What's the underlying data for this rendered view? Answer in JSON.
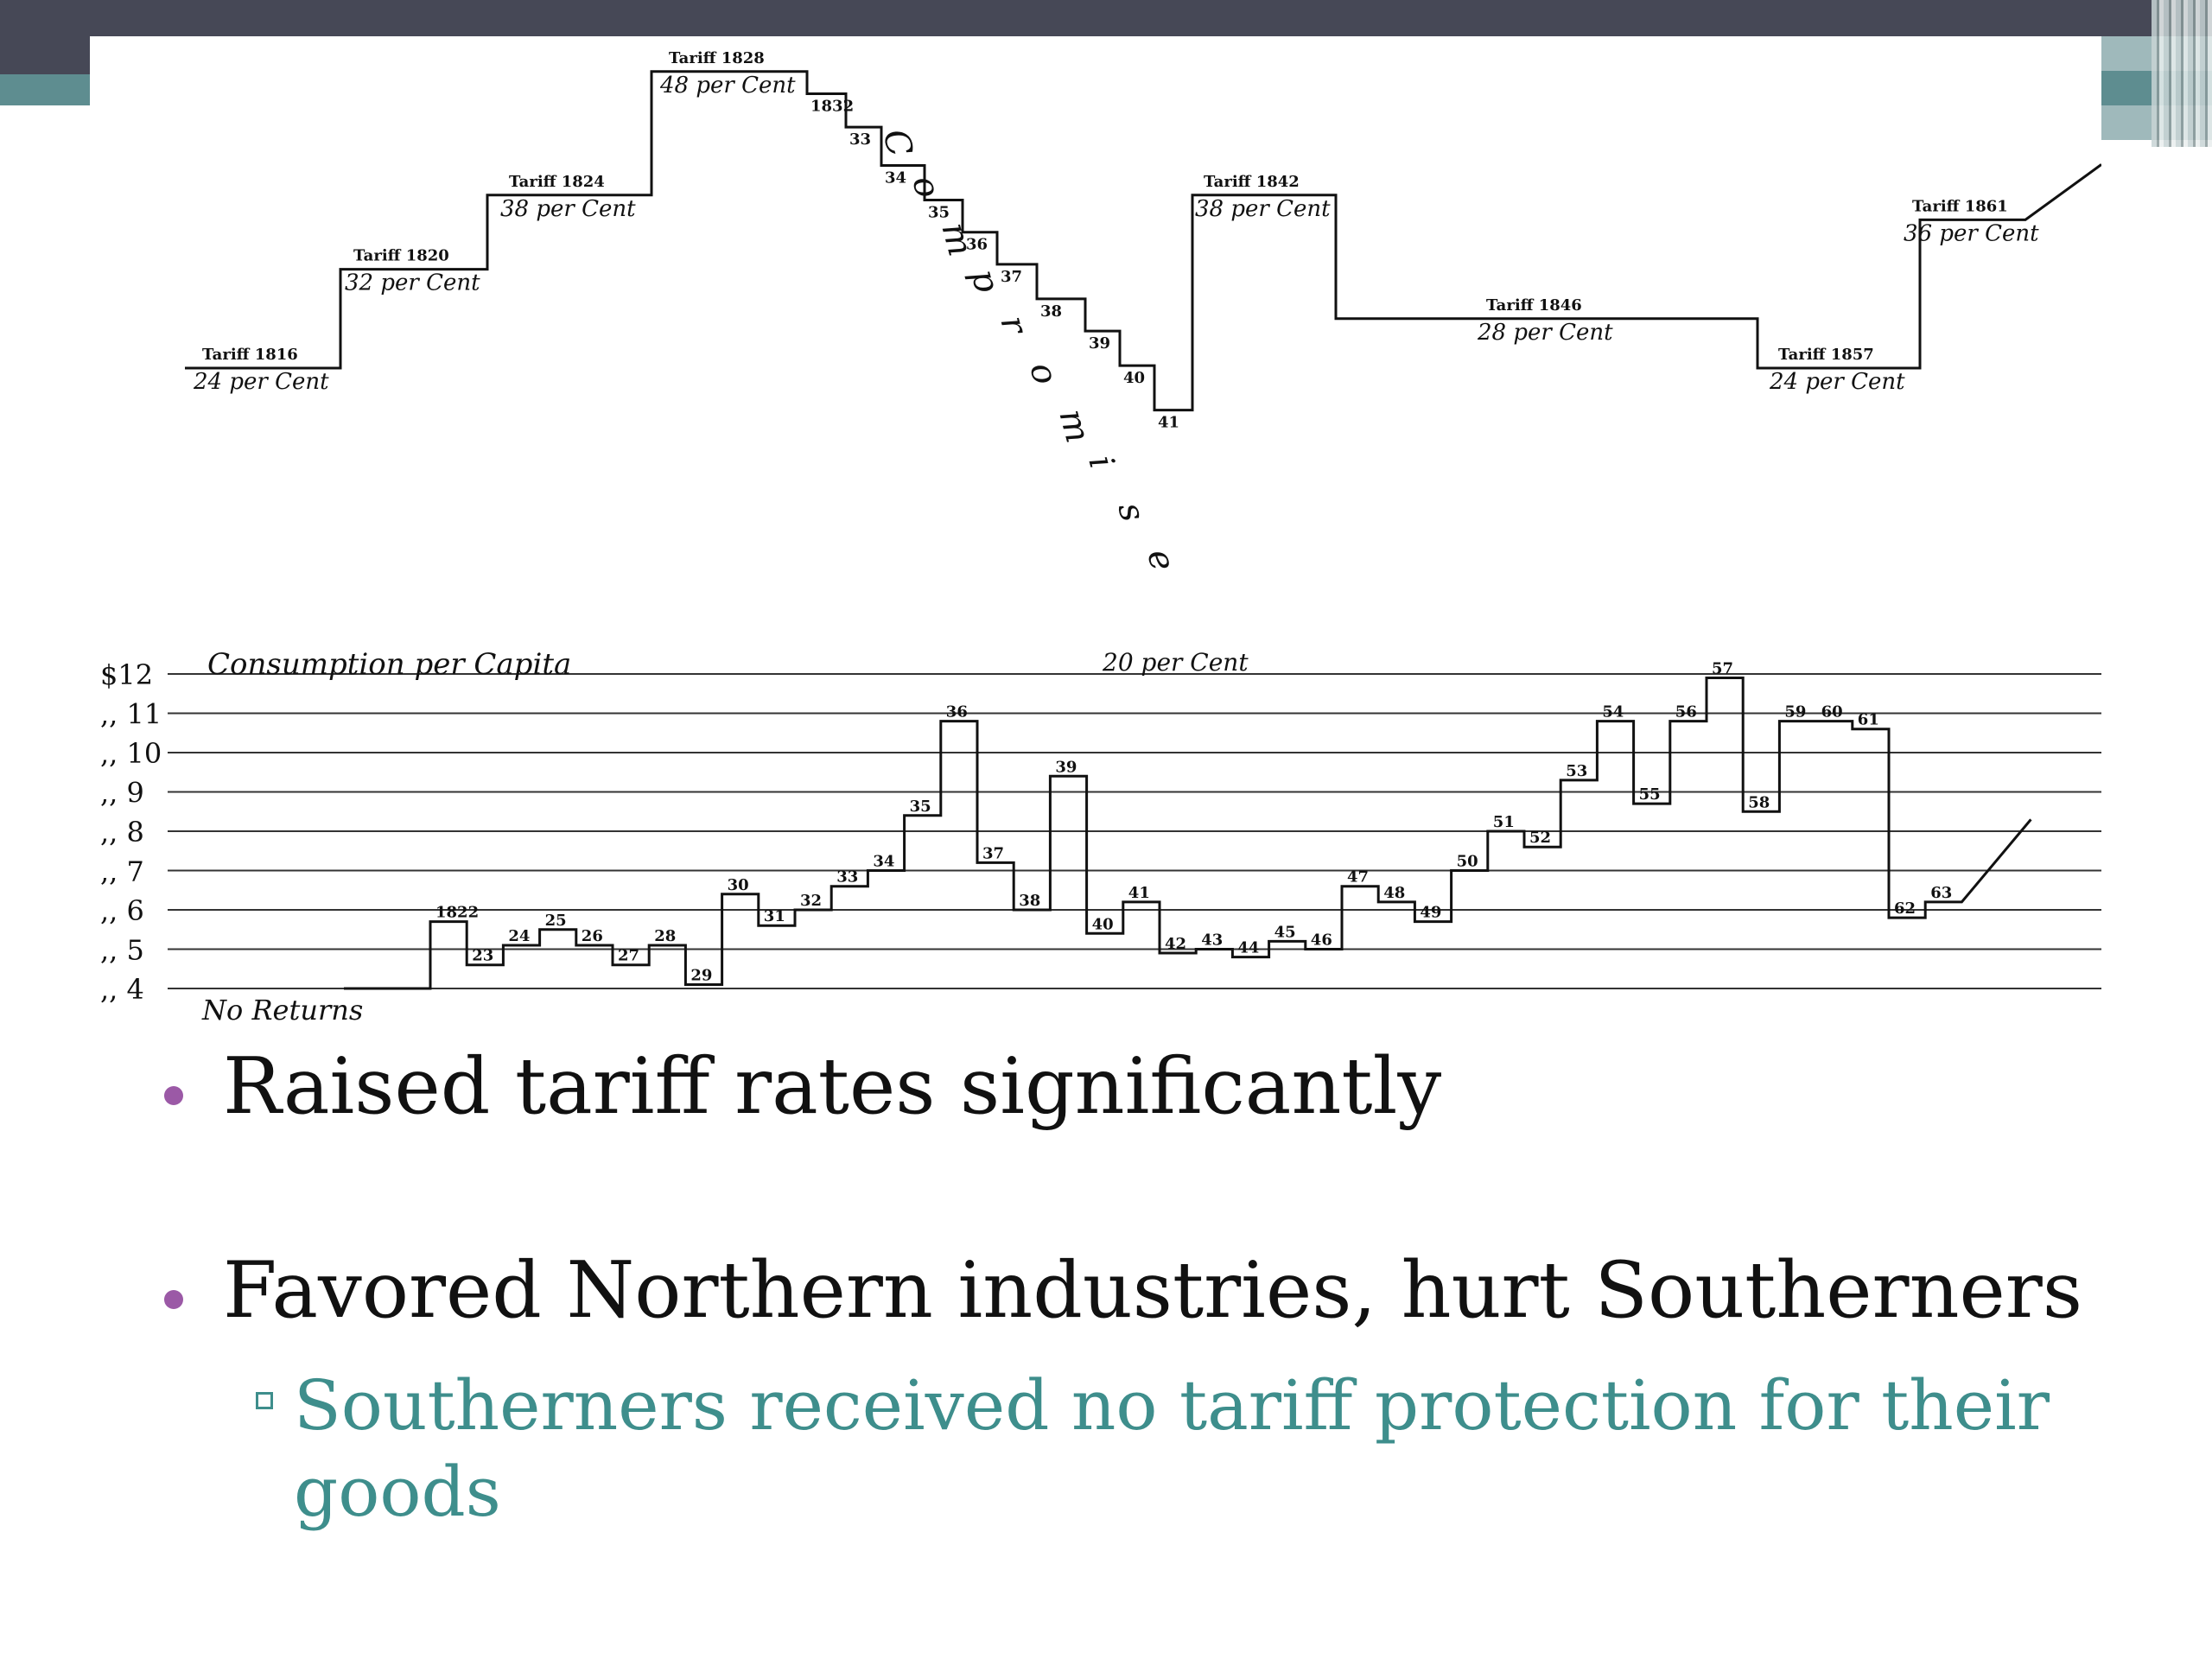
{
  "chart_data": {
    "type": "line",
    "title": "",
    "tariff_rates": {
      "labels": [
        {
          "year": "Tariff 1816",
          "rate": "24 per Cent"
        },
        {
          "year": "Tariff 1820",
          "rate": "32 per Cent"
        },
        {
          "year": "Tariff 1824",
          "rate": "38 per Cent"
        },
        {
          "year": "Tariff 1828",
          "rate": "48 per Cent"
        },
        {
          "year": "Tariff 1842",
          "rate": "38 per Cent"
        },
        {
          "year": "Tariff 1846",
          "rate": "28 per Cent"
        },
        {
          "year": "Tariff 1857",
          "rate": "24 per Cent"
        },
        {
          "year": "Tariff 1861",
          "rate": "36 per Cent"
        }
      ],
      "low_label": "20 per Cent",
      "compromise_text": "Compromise",
      "compromise_years": [
        "1832",
        "33",
        "34",
        "35",
        "36",
        "37",
        "38",
        "39",
        "40",
        "41"
      ]
    },
    "consumption": {
      "ylabel": "Consumption per Capita",
      "y_ticks": [
        "$12",
        "11",
        "10",
        "9",
        "8",
        "7",
        "6",
        "5",
        "4"
      ],
      "no_returns_label": "No Returns",
      "years": [
        "1822",
        "23",
        "24",
        "25",
        "26",
        "27",
        "28",
        "29",
        "30",
        "31",
        "32",
        "33",
        "34",
        "35",
        "36",
        "37",
        "38",
        "39",
        "40",
        "41",
        "42",
        "43",
        "44",
        "45",
        "46",
        "47",
        "48",
        "49",
        "50",
        "51",
        "52",
        "53",
        "54",
        "55",
        "56",
        "57",
        "58",
        "59",
        "60",
        "61",
        "62",
        "63"
      ],
      "values": [
        5.7,
        4.6,
        5.1,
        5.5,
        5.1,
        4.6,
        5.1,
        4.1,
        6.4,
        5.6,
        6.0,
        6.6,
        7.0,
        8.4,
        10.8,
        7.2,
        6.0,
        9.4,
        5.4,
        6.2,
        4.9,
        5.0,
        4.8,
        5.2,
        5.0,
        6.6,
        6.2,
        5.7,
        7.0,
        8.0,
        7.6,
        9.3,
        10.8,
        8.7,
        10.8,
        11.9,
        8.5,
        10.8,
        10.8,
        10.6,
        5.8,
        6.2
      ]
    }
  },
  "bullets": [
    {
      "text": "Raised tariff rates significantly"
    },
    {
      "text": "Favored Northern industries, hurt Southerners"
    }
  ],
  "sub_bullets": [
    {
      "text": "Southerners received no tariff protection for their goods"
    }
  ],
  "colors": {
    "bullet": "#9b59a6",
    "sub_bullet": "#3e8e8c",
    "band": "#464856",
    "accent": "#5e8d90"
  }
}
